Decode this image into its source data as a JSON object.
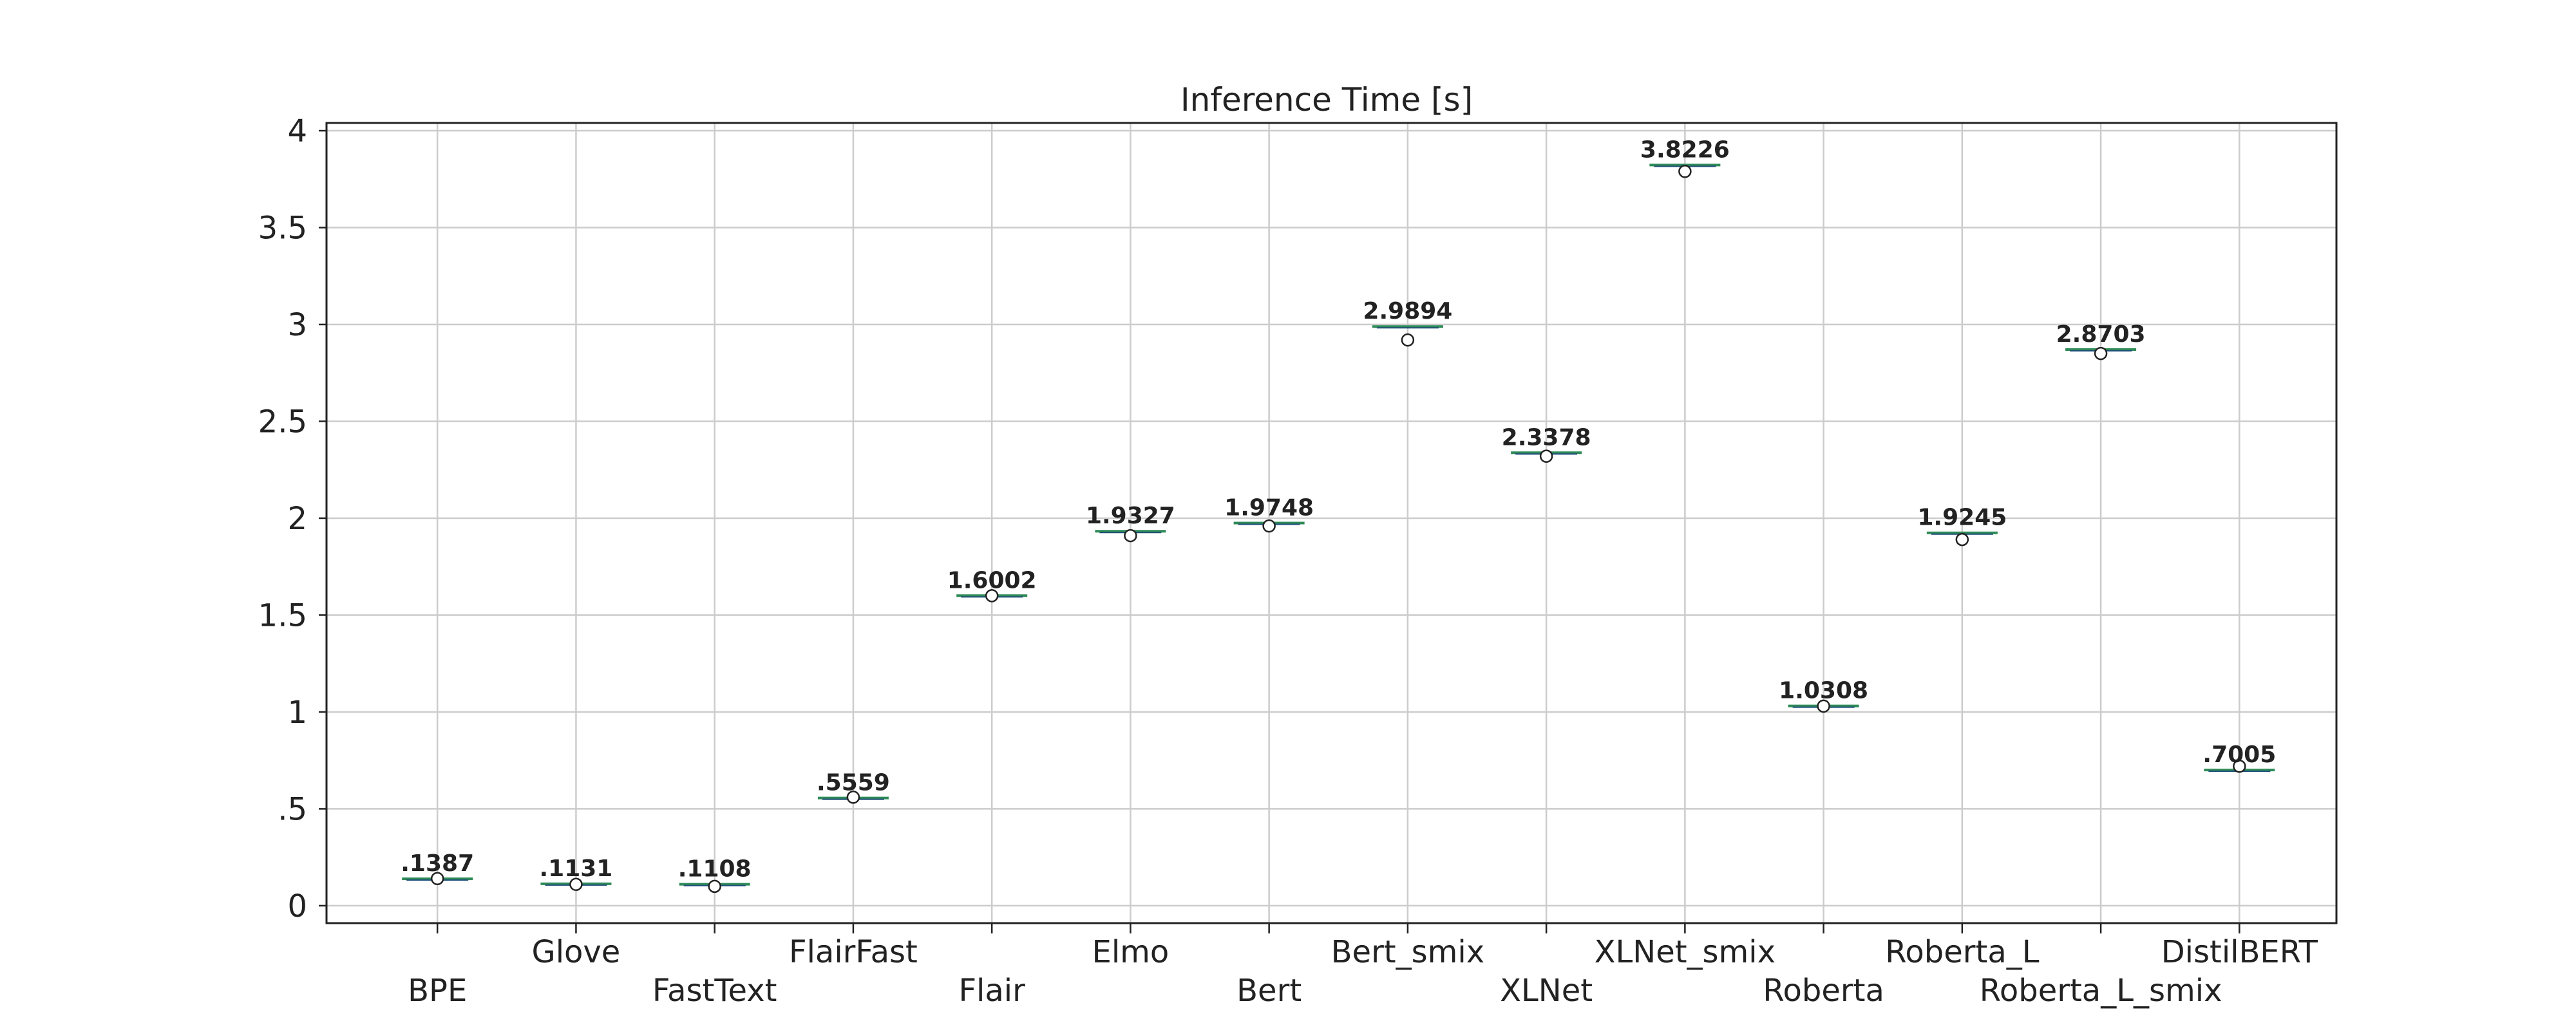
{
  "chart_data": {
    "type": "box",
    "title": "Inference Time [s]",
    "xlabel": "",
    "ylabel": "",
    "ylim": [
      -0.09,
      4.04
    ],
    "yticks": [
      0,
      0.5,
      1,
      1.5,
      2,
      2.5,
      3,
      3.5,
      4
    ],
    "ytick_labels": [
      "0",
      ".5",
      "1",
      "1.5",
      "2",
      "2.5",
      "3",
      "3.5",
      "4"
    ],
    "grid": true,
    "categories": [
      "BPE",
      "Glove",
      "FastText",
      "FlairFast",
      "Flair",
      "Elmo",
      "Bert",
      "Bert_smix",
      "XLNet",
      "XLNet_smix",
      "Roberta",
      "Roberta_L",
      "Roberta_L_smix",
      "DistilBERT"
    ],
    "values": [
      0.1387,
      0.1131,
      0.1108,
      0.5559,
      1.6002,
      1.9327,
      1.9748,
      2.9894,
      2.3378,
      3.8226,
      1.0308,
      1.9245,
      2.8703,
      0.7005
    ],
    "value_labels": [
      ".1387",
      ".1131",
      ".1108",
      ".5559",
      "1.6002",
      "1.9327",
      "1.9748",
      "2.9894",
      "2.3378",
      "3.8226",
      "1.0308",
      "1.9245",
      "2.8703",
      ".7005"
    ],
    "outliers": [
      0.14,
      0.11,
      0.1,
      0.56,
      1.6,
      1.91,
      1.96,
      2.92,
      2.32,
      3.79,
      1.03,
      1.89,
      2.85,
      0.72
    ],
    "colors": {
      "median": "#2e8b57",
      "box": "#1f4e79",
      "grid": "#cccccc",
      "axis": "#222222",
      "outlier": "#222222"
    }
  }
}
